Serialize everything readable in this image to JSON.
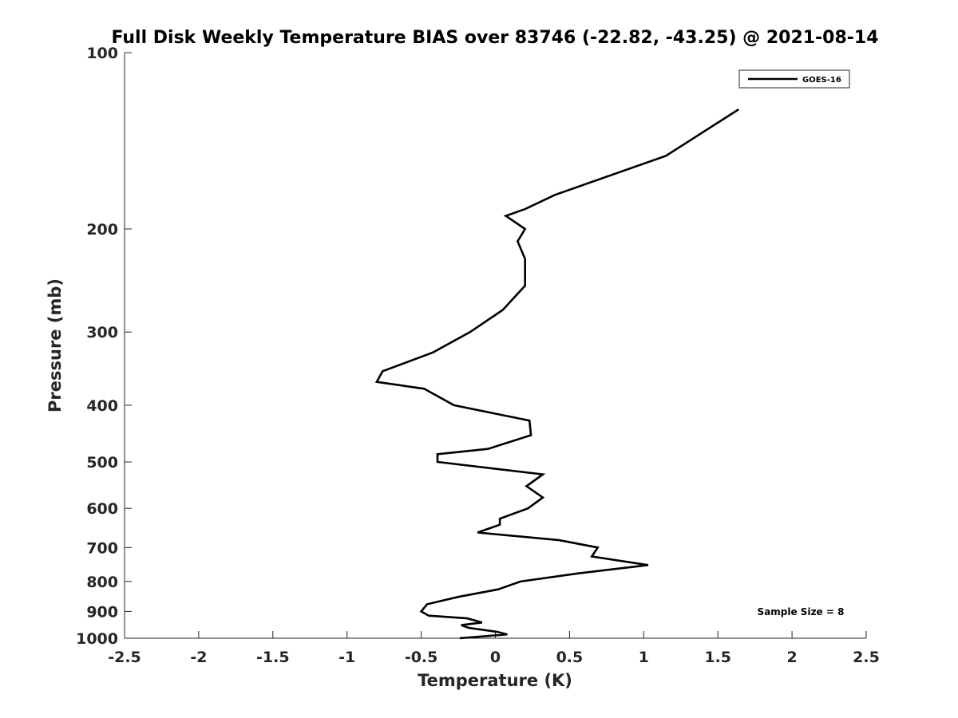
{
  "chart_data": {
    "type": "line",
    "title": "Full Disk Weekly Temperature BIAS over 83746 (-22.82, -43.25) @ 2021-08-14",
    "xlabel": "Temperature (K)",
    "ylabel": "Pressure (mb)",
    "xlim": [
      -2.5,
      2.5
    ],
    "ylim": [
      100,
      1000
    ],
    "y_scale": "log",
    "y_reversed": true,
    "x_ticks": [
      -2.5,
      -2,
      -1.5,
      -1,
      -0.5,
      0,
      0.5,
      1,
      1.5,
      2,
      2.5
    ],
    "x_tick_labels": [
      "-2.5",
      "-2",
      "-1.5",
      "-1",
      "-0.5",
      "0",
      "0.5",
      "1",
      "1.5",
      "2",
      "2.5"
    ],
    "y_ticks": [
      100,
      200,
      300,
      400,
      500,
      600,
      700,
      800,
      900,
      1000
    ],
    "y_tick_labels": [
      "100",
      "200",
      "300",
      "400",
      "500",
      "600",
      "700",
      "800",
      "900",
      "1000"
    ],
    "grid": false,
    "legend_position": "top-right",
    "annotation": "Sample Size = 8",
    "series": [
      {
        "name": "GOES-16",
        "color": "#000000",
        "points": [
          [
            1.64,
            125
          ],
          [
            1.15,
            150
          ],
          [
            0.4,
            175
          ],
          [
            0.2,
            185
          ],
          [
            0.07,
            190
          ],
          [
            0.2,
            200
          ],
          [
            0.15,
            210
          ],
          [
            0.2,
            225
          ],
          [
            0.2,
            235
          ],
          [
            0.2,
            250
          ],
          [
            0.05,
            275
          ],
          [
            -0.17,
            300
          ],
          [
            -0.42,
            325
          ],
          [
            -0.76,
            350
          ],
          [
            -0.8,
            365
          ],
          [
            -0.48,
            375
          ],
          [
            -0.28,
            400
          ],
          [
            0.23,
            425
          ],
          [
            0.24,
            450
          ],
          [
            -0.05,
            475
          ],
          [
            -0.39,
            485
          ],
          [
            -0.39,
            500
          ],
          [
            0.32,
            525
          ],
          [
            0.21,
            550
          ],
          [
            0.32,
            575
          ],
          [
            0.22,
            600
          ],
          [
            0.03,
            625
          ],
          [
            0.03,
            640
          ],
          [
            -0.12,
            660
          ],
          [
            0.43,
            680
          ],
          [
            0.69,
            700
          ],
          [
            0.65,
            725
          ],
          [
            1.03,
            750
          ],
          [
            0.56,
            775
          ],
          [
            0.17,
            800
          ],
          [
            0.02,
            825
          ],
          [
            -0.25,
            850
          ],
          [
            -0.46,
            875
          ],
          [
            -0.5,
            900
          ],
          [
            -0.45,
            915
          ],
          [
            -0.19,
            925
          ],
          [
            -0.09,
            940
          ],
          [
            -0.23,
            950
          ],
          [
            -0.18,
            960
          ],
          [
            0.01,
            975
          ],
          [
            0.08,
            985
          ],
          [
            -0.24,
            1000
          ]
        ]
      }
    ]
  }
}
